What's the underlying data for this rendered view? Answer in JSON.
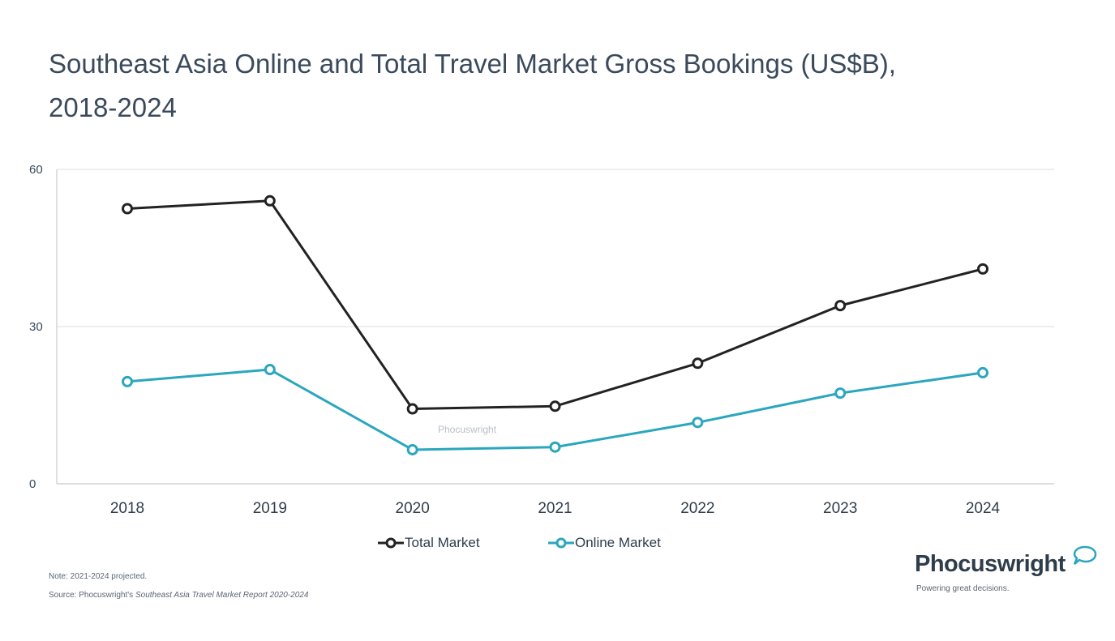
{
  "title": {
    "line1": "Southeast Asia Online and Total Travel Market Gross Bookings (US$B),",
    "line2": "2018-2024"
  },
  "chart_data": {
    "type": "line",
    "title": "Southeast Asia Online and Total Travel Market Gross Bookings (US$B), 2018-2024",
    "xlabel": "",
    "ylabel": "",
    "x": [
      "2018",
      "2019",
      "2020",
      "2021",
      "2022",
      "2023",
      "2024"
    ],
    "ylim": [
      0,
      60
    ],
    "yticks": [
      0,
      30,
      60
    ],
    "grid": true,
    "legend_position": "bottom",
    "series": [
      {
        "name": "Total Market",
        "color": "#222222",
        "values": [
          52.5,
          54,
          14.3,
          14.8,
          23,
          34,
          41
        ]
      },
      {
        "name": "Online Market",
        "color": "#2aa7bd",
        "values": [
          19.5,
          21.8,
          6.5,
          7,
          11.7,
          17.3,
          21.2
        ]
      }
    ],
    "watermark": "Phocuswright"
  },
  "legend": {
    "total_label": "Total Market",
    "online_label": "Online Market"
  },
  "notes": {
    "note": "Note: 2021-2024 projected.",
    "source_prefix": "Source: Phocuswright's ",
    "source_title": "Southeast Asia Travel Market Report 2020-2024"
  },
  "brand": {
    "name": "Phocuswright",
    "tagline": "Powering great decisions."
  },
  "colors": {
    "total": "#222222",
    "online": "#2aa7bd",
    "grid": "#e6e8eb"
  }
}
